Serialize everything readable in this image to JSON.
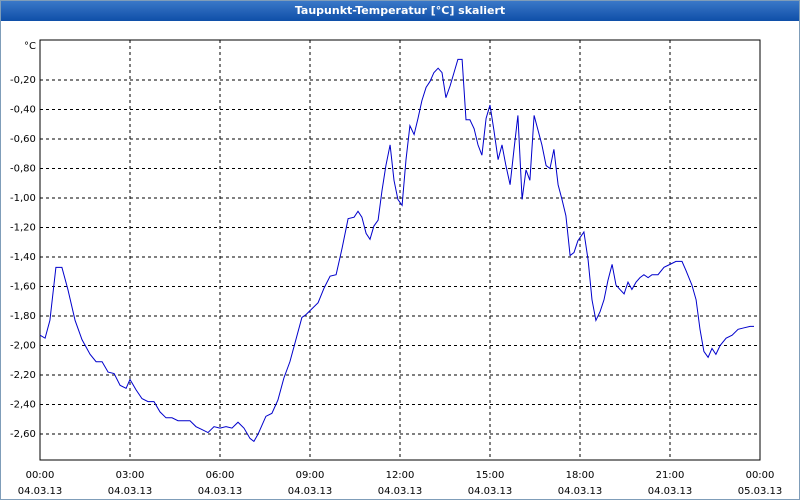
{
  "chart_data": {
    "type": "line",
    "title": "Taupunkt-Temperatur [°C] skaliert",
    "y_label": "°C",
    "color": "#0000cc",
    "grid": true,
    "xlim": [
      0,
      24
    ],
    "ylim": [
      -2.776,
      0.071
    ],
    "xticks": [
      {
        "value": 0,
        "label": "00:00",
        "date": "04.03.13"
      },
      {
        "value": 3,
        "label": "03:00",
        "date": "04.03.13"
      },
      {
        "value": 6,
        "label": "06:00",
        "date": "04.03.13"
      },
      {
        "value": 9,
        "label": "09:00",
        "date": "04.03.13"
      },
      {
        "value": 12,
        "label": "12:00",
        "date": "04.03.13"
      },
      {
        "value": 15,
        "label": "15:00",
        "date": "04.03.13"
      },
      {
        "value": 18,
        "label": "18:00",
        "date": "04.03.13"
      },
      {
        "value": 21,
        "label": "21:00",
        "date": "04.03.13"
      },
      {
        "value": 24,
        "label": "00:00",
        "date": "05.03.13"
      }
    ],
    "yticks": [
      {
        "value": -0.2,
        "label": "-0,20"
      },
      {
        "value": -0.4,
        "label": "-0,40"
      },
      {
        "value": -0.6,
        "label": "-0,60"
      },
      {
        "value": -0.8,
        "label": "-0,80"
      },
      {
        "value": -1.0,
        "label": "-1,00"
      },
      {
        "value": -1.2,
        "label": "-1,20"
      },
      {
        "value": -1.4,
        "label": "-1,40"
      },
      {
        "value": -1.6,
        "label": "-1,60"
      },
      {
        "value": -1.8,
        "label": "-1,80"
      },
      {
        "value": -2.0,
        "label": "-2,00"
      },
      {
        "value": -2.2,
        "label": "-2,20"
      },
      {
        "value": -2.4,
        "label": "-2,40"
      },
      {
        "value": -2.6,
        "label": "-2,60"
      }
    ],
    "x": [
      0,
      0.17,
      0.33,
      0.53,
      0.73,
      0.93,
      1.17,
      1.4,
      1.67,
      1.87,
      2.07,
      2.27,
      2.47,
      2.67,
      2.87,
      3,
      3.2,
      3.4,
      3.6,
      3.8,
      4,
      4.2,
      4.4,
      4.6,
      4.8,
      5,
      5.2,
      5.4,
      5.6,
      5.8,
      6,
      6.2,
      6.4,
      6.6,
      6.8,
      7,
      7.13,
      7.27,
      7.4,
      7.53,
      7.73,
      7.93,
      8.13,
      8.33,
      8.53,
      8.73,
      8.87,
      9.07,
      9.27,
      9.47,
      9.67,
      9.87,
      10.07,
      10.27,
      10.47,
      10.6,
      10.73,
      10.87,
      11,
      11.13,
      11.27,
      11.4,
      11.53,
      11.67,
      11.8,
      11.93,
      12.07,
      12.2,
      12.33,
      12.47,
      12.6,
      12.73,
      12.87,
      13,
      13.13,
      13.27,
      13.4,
      13.53,
      13.67,
      13.8,
      13.93,
      14.07,
      14.2,
      14.33,
      14.47,
      14.6,
      14.73,
      14.87,
      15,
      15.13,
      15.27,
      15.4,
      15.53,
      15.67,
      15.8,
      15.93,
      16.07,
      16.2,
      16.33,
      16.47,
      16.6,
      16.73,
      16.87,
      17,
      17.13,
      17.27,
      17.4,
      17.53,
      17.67,
      17.8,
      17.93,
      18.13,
      18.27,
      18.4,
      18.53,
      18.67,
      18.8,
      18.93,
      19.07,
      19.2,
      19.33,
      19.47,
      19.6,
      19.73,
      19.87,
      20,
      20.13,
      20.27,
      20.4,
      20.6,
      20.8,
      21,
      21.2,
      21.4,
      21.53,
      21.73,
      21.87,
      22,
      22.13,
      22.27,
      22.4,
      22.53,
      22.67,
      22.87,
      23.07,
      23.27,
      23.47,
      23.67,
      23.8
    ],
    "values": [
      -1.93,
      -1.95,
      -1.83,
      -1.47,
      -1.47,
      -1.62,
      -1.83,
      -1.96,
      -2.06,
      -2.11,
      -2.11,
      -2.18,
      -2.19,
      -2.27,
      -2.29,
      -2.23,
      -2.3,
      -2.36,
      -2.38,
      -2.38,
      -2.45,
      -2.49,
      -2.49,
      -2.51,
      -2.51,
      -2.51,
      -2.55,
      -2.57,
      -2.59,
      -2.55,
      -2.56,
      -2.55,
      -2.56,
      -2.52,
      -2.56,
      -2.63,
      -2.65,
      -2.6,
      -2.54,
      -2.48,
      -2.46,
      -2.37,
      -2.22,
      -2.11,
      -1.96,
      -1.81,
      -1.79,
      -1.75,
      -1.71,
      -1.61,
      -1.53,
      -1.52,
      -1.34,
      -1.14,
      -1.13,
      -1.09,
      -1.13,
      -1.24,
      -1.28,
      -1.19,
      -1.15,
      -0.95,
      -0.78,
      -0.64,
      -0.88,
      -1.01,
      -1.05,
      -0.74,
      -0.51,
      -0.57,
      -0.46,
      -0.34,
      -0.25,
      -0.21,
      -0.15,
      -0.12,
      -0.15,
      -0.32,
      -0.24,
      -0.15,
      -0.06,
      -0.06,
      -0.47,
      -0.47,
      -0.53,
      -0.64,
      -0.71,
      -0.46,
      -0.37,
      -0.54,
      -0.74,
      -0.64,
      -0.78,
      -0.91,
      -0.67,
      -0.44,
      -1.01,
      -0.81,
      -0.88,
      -0.44,
      -0.54,
      -0.64,
      -0.78,
      -0.8,
      -0.67,
      -0.91,
      -1.01,
      -1.12,
      -1.39,
      -1.37,
      -1.29,
      -1.23,
      -1.42,
      -1.69,
      -1.83,
      -1.77,
      -1.69,
      -1.56,
      -1.45,
      -1.59,
      -1.62,
      -1.65,
      -1.57,
      -1.62,
      -1.57,
      -1.54,
      -1.52,
      -1.54,
      -1.52,
      -1.52,
      -1.47,
      -1.45,
      -1.43,
      -1.43,
      -1.49,
      -1.59,
      -1.69,
      -1.89,
      -2.04,
      -2.08,
      -2.02,
      -2.06,
      -2.0,
      -1.95,
      -1.93,
      -1.89,
      -1.88,
      -1.87,
      -1.87
    ]
  }
}
